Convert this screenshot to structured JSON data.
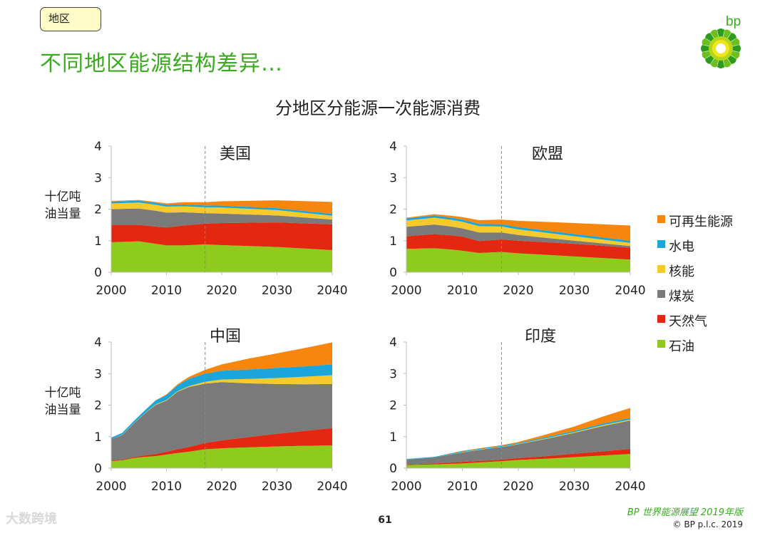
{
  "header": {
    "tag": "地区",
    "title": "不同地区能源结构差异…",
    "logo_text": "bp"
  },
  "figure_title": "分地区分能源一次能源消费",
  "y_axis_label": [
    "十亿吨",
    "油当量"
  ],
  "colors": {
    "title_green": "#3aaa1e",
    "oil": "#8fcb1c",
    "gas": "#e42710",
    "coal": "#7a7a7a",
    "nuclear": "#f6ca2c",
    "hydro": "#1aa6da",
    "renewables": "#f7860e"
  },
  "chart_data": [
    {
      "type": "area",
      "stacked": true,
      "title": "美国",
      "xlabel": "",
      "ylabel": "十亿吨 油当量",
      "xlim": [
        2000,
        2040
      ],
      "ylim": [
        0,
        4
      ],
      "x_ticks": [
        "2000",
        "2010",
        "2020",
        "2030",
        "2040"
      ],
      "y_ticks": [
        "0",
        "1",
        "2",
        "3",
        "4"
      ],
      "projection_start": 2017,
      "x": [
        2000,
        2005,
        2008,
        2010,
        2013,
        2017,
        2020,
        2030,
        2040
      ],
      "series": [
        {
          "name": "石油",
          "values": [
            0.95,
            0.98,
            0.9,
            0.85,
            0.85,
            0.88,
            0.86,
            0.8,
            0.7
          ]
        },
        {
          "name": "天然气",
          "values": [
            0.55,
            0.52,
            0.55,
            0.57,
            0.63,
            0.66,
            0.7,
            0.78,
            0.82
          ]
        },
        {
          "name": "煤炭",
          "values": [
            0.5,
            0.52,
            0.5,
            0.47,
            0.42,
            0.33,
            0.3,
            0.22,
            0.15
          ]
        },
        {
          "name": "核能",
          "values": [
            0.18,
            0.19,
            0.19,
            0.19,
            0.19,
            0.19,
            0.19,
            0.17,
            0.12
          ]
        },
        {
          "name": "水电",
          "values": [
            0.06,
            0.06,
            0.06,
            0.06,
            0.06,
            0.06,
            0.06,
            0.06,
            0.06
          ]
        },
        {
          "name": "可再生能源",
          "values": [
            0.02,
            0.02,
            0.03,
            0.04,
            0.07,
            0.1,
            0.14,
            0.25,
            0.38
          ]
        }
      ]
    },
    {
      "type": "area",
      "stacked": true,
      "title": "欧盟",
      "xlabel": "",
      "ylabel": "",
      "xlim": [
        2000,
        2040
      ],
      "ylim": [
        0,
        4
      ],
      "x_ticks": [
        "2000",
        "2010",
        "2020",
        "2030",
        "2040"
      ],
      "y_ticks": [
        "0",
        "1",
        "2",
        "3",
        "4"
      ],
      "projection_start": 2017,
      "x": [
        2000,
        2005,
        2008,
        2010,
        2013,
        2017,
        2020,
        2030,
        2040
      ],
      "series": [
        {
          "name": "石油",
          "values": [
            0.74,
            0.76,
            0.72,
            0.68,
            0.61,
            0.64,
            0.6,
            0.5,
            0.4
          ]
        },
        {
          "name": "天然气",
          "values": [
            0.4,
            0.45,
            0.45,
            0.45,
            0.38,
            0.4,
            0.4,
            0.4,
            0.38
          ]
        },
        {
          "name": "煤炭",
          "values": [
            0.3,
            0.3,
            0.28,
            0.26,
            0.27,
            0.22,
            0.18,
            0.1,
            0.05
          ]
        },
        {
          "name": "核能",
          "values": [
            0.2,
            0.22,
            0.21,
            0.21,
            0.2,
            0.19,
            0.18,
            0.14,
            0.1
          ]
        },
        {
          "name": "水电",
          "values": [
            0.07,
            0.07,
            0.07,
            0.07,
            0.07,
            0.07,
            0.07,
            0.07,
            0.07
          ]
        },
        {
          "name": "可再生能源",
          "values": [
            0.02,
            0.04,
            0.06,
            0.08,
            0.12,
            0.15,
            0.2,
            0.35,
            0.48
          ]
        }
      ]
    },
    {
      "type": "area",
      "stacked": true,
      "title": "中国",
      "xlabel": "",
      "ylabel": "十亿吨 油当量",
      "xlim": [
        2000,
        2040
      ],
      "ylim": [
        0,
        4
      ],
      "x_ticks": [
        "2000",
        "2010",
        "2020",
        "2030",
        "2040"
      ],
      "y_ticks": [
        "0",
        "1",
        "2",
        "3",
        "4"
      ],
      "projection_start": 2017,
      "x": [
        2000,
        2002,
        2004,
        2006,
        2008,
        2010,
        2012,
        2014,
        2017,
        2020,
        2025,
        2030,
        2035,
        2040
      ],
      "series": [
        {
          "name": "石油",
          "values": [
            0.22,
            0.25,
            0.32,
            0.36,
            0.38,
            0.43,
            0.48,
            0.52,
            0.6,
            0.63,
            0.66,
            0.69,
            0.71,
            0.72
          ]
        },
        {
          "name": "天然气",
          "values": [
            0.02,
            0.02,
            0.03,
            0.04,
            0.07,
            0.09,
            0.12,
            0.15,
            0.2,
            0.25,
            0.33,
            0.4,
            0.47,
            0.55
          ]
        },
        {
          "name": "煤炭",
          "values": [
            0.68,
            0.78,
            1.05,
            1.32,
            1.55,
            1.62,
            1.82,
            1.9,
            1.88,
            1.85,
            1.7,
            1.58,
            1.48,
            1.4
          ]
        },
        {
          "name": "核能",
          "values": [
            0.0,
            0.01,
            0.01,
            0.01,
            0.02,
            0.02,
            0.02,
            0.03,
            0.06,
            0.08,
            0.14,
            0.19,
            0.24,
            0.28
          ]
        },
        {
          "name": "水电",
          "values": [
            0.05,
            0.06,
            0.07,
            0.09,
            0.12,
            0.16,
            0.19,
            0.23,
            0.26,
            0.28,
            0.3,
            0.32,
            0.33,
            0.34
          ]
        },
        {
          "name": "可再生能源",
          "values": [
            0.0,
            0.0,
            0.0,
            0.0,
            0.01,
            0.02,
            0.03,
            0.06,
            0.12,
            0.2,
            0.35,
            0.46,
            0.58,
            0.7
          ]
        }
      ]
    },
    {
      "type": "area",
      "stacked": true,
      "title": "印度",
      "xlabel": "",
      "ylabel": "",
      "xlim": [
        2000,
        2040
      ],
      "ylim": [
        0,
        4
      ],
      "x_ticks": [
        "2000",
        "2010",
        "2020",
        "2030",
        "2040"
      ],
      "y_ticks": [
        "0",
        "1",
        "2",
        "3",
        "4"
      ],
      "projection_start": 2017,
      "x": [
        2000,
        2005,
        2010,
        2015,
        2017,
        2020,
        2025,
        2030,
        2035,
        2040
      ],
      "series": [
        {
          "name": "石油",
          "values": [
            0.1,
            0.12,
            0.15,
            0.2,
            0.22,
            0.26,
            0.3,
            0.35,
            0.4,
            0.45
          ]
        },
        {
          "name": "天然气",
          "values": [
            0.02,
            0.03,
            0.05,
            0.05,
            0.05,
            0.06,
            0.08,
            0.11,
            0.13,
            0.16
          ]
        },
        {
          "name": "煤炭",
          "values": [
            0.15,
            0.19,
            0.3,
            0.38,
            0.4,
            0.44,
            0.55,
            0.66,
            0.8,
            0.9
          ]
        },
        {
          "name": "核能",
          "values": [
            0.0,
            0.0,
            0.01,
            0.01,
            0.01,
            0.01,
            0.02,
            0.02,
            0.03,
            0.03
          ]
        },
        {
          "name": "水电",
          "values": [
            0.02,
            0.02,
            0.03,
            0.03,
            0.03,
            0.03,
            0.04,
            0.04,
            0.05,
            0.05
          ]
        },
        {
          "name": "可再生能源",
          "values": [
            0.0,
            0.0,
            0.01,
            0.01,
            0.02,
            0.03,
            0.08,
            0.14,
            0.22,
            0.32
          ]
        }
      ]
    }
  ],
  "legend": [
    "可再生能源",
    "水电",
    "核能",
    "煤炭",
    "天然气",
    "石油"
  ],
  "footer": {
    "page_number": "61",
    "credit": "BP 世界能源展望 2019年版",
    "copyright": "© BP p.l.c. 2019",
    "watermark": "大数跨境"
  }
}
